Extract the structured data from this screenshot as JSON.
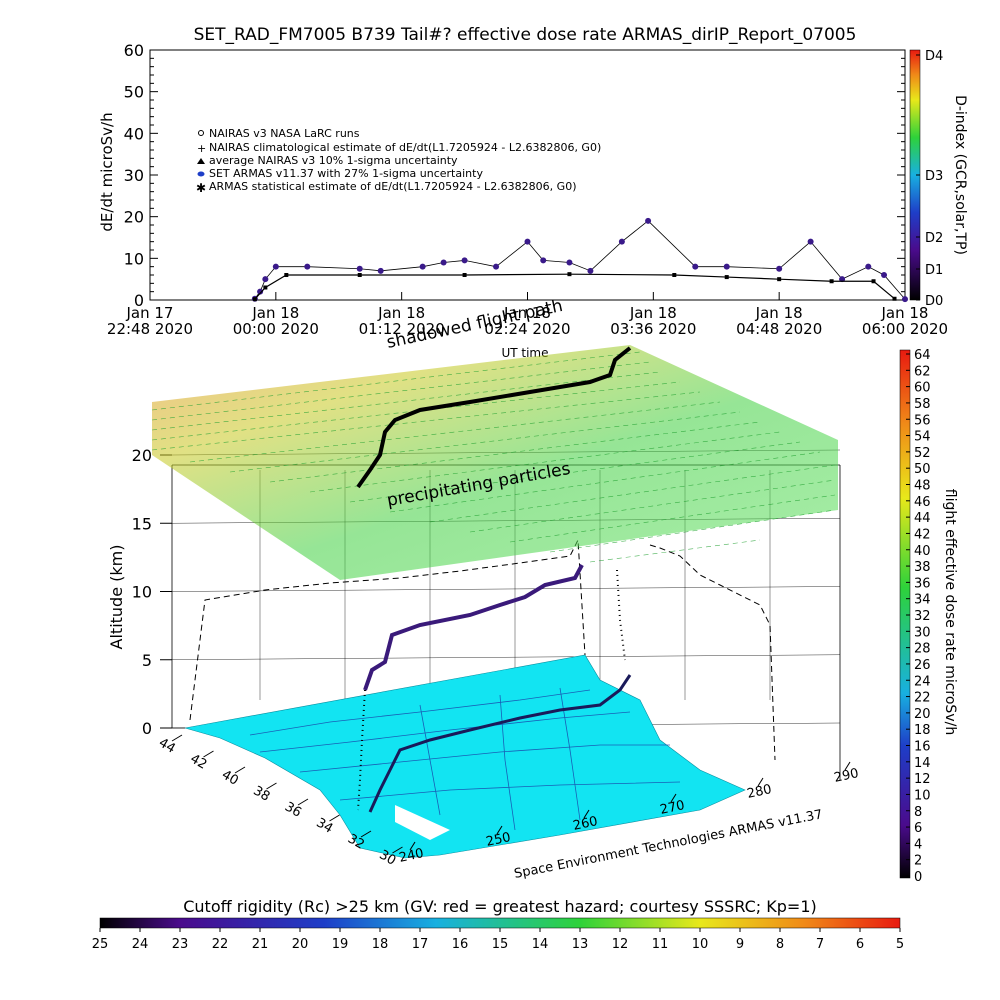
{
  "chart_data": [
    {
      "type": "scatter",
      "title": "SET_RAD_FM7005  B739 Tail#? effective dose rate ARMAS_dirIP_Report_07005",
      "ylabel": "dE/dt microSv/h",
      "xlabel": "",
      "ylim": [
        0,
        60
      ],
      "y_ticks": [
        "0",
        "10",
        "20",
        "30",
        "40",
        "50",
        "60"
      ],
      "x_ticks": [
        {
          "l1": "Jan 17",
          "l2": "22:48 2020"
        },
        {
          "l1": "Jan 18",
          "l2": "00:00 2020"
        },
        {
          "l1": "Jan 18",
          "l2": "01:12 2020"
        },
        {
          "l1": "Jan 18",
          "l2": "02:24 2020"
        },
        {
          "l1": "Jan 18",
          "l2": "03:36 2020"
        },
        {
          "l1": "Jan 18",
          "l2": "04:48 2020"
        },
        {
          "l1": "Jan 18",
          "l2": "06:00 2020"
        }
      ],
      "x_range_hours": [
        0,
        7.2
      ],
      "legend": [
        "NAIRAS v3 NASA LaRC runs",
        "NAIRAS climatological estimate of dE/dt(L1.7205924 - L2.6382806, G0)",
        "average NAIRAS v3 10% 1-sigma uncertainty",
        "SET ARMAS v11.37 with 27% 1-sigma uncertainty",
        "ARMAS statistical estimate of dE/dt(L1.7205924 - L2.6382806, G0)"
      ],
      "legend_position": "upper-left",
      "right_axis_label": "D-index (GCR,solar,TP)",
      "right_axis_ticks": [
        "D0",
        "D1",
        "D2",
        "D3",
        "D4"
      ],
      "extra_labels": [
        "UT time",
        "shadowed flight path"
      ],
      "series": [
        {
          "name": "SET ARMAS v11.37 with 27% 1-sigma uncertainty",
          "color": "#3a1a8a",
          "x": [
            1.0,
            1.05,
            1.1,
            1.2,
            1.5,
            2.0,
            2.2,
            2.6,
            2.8,
            3.0,
            3.3,
            3.6,
            3.75,
            4.0,
            4.2,
            4.5,
            4.75,
            5.2,
            5.5,
            6.0,
            6.3,
            6.6,
            6.85,
            7.0,
            7.2
          ],
          "y": [
            0.3,
            2,
            5,
            8,
            8,
            7.5,
            7,
            8,
            9,
            9.5,
            8,
            14,
            9.5,
            9,
            7,
            14,
            19,
            8,
            8,
            7.5,
            14,
            5,
            8,
            6,
            0.2
          ]
        },
        {
          "name": "ARMAS statistical estimate of dE/dt(L1.7205924 - L2.6382806, G0)",
          "color": "#000000",
          "x": [
            1.0,
            1.1,
            1.3,
            2.0,
            3.0,
            4.0,
            5.0,
            5.5,
            6.0,
            6.5,
            6.9,
            7.1
          ],
          "y": [
            0.2,
            3,
            6,
            6,
            6,
            6.2,
            6,
            5.5,
            5,
            4.5,
            4.5,
            0.3
          ]
        }
      ]
    },
    {
      "type": "surface-3d",
      "zlabel": "Altitude (km)",
      "zlim": [
        0,
        20
      ],
      "z_ticks": [
        "0",
        "5",
        "10",
        "15",
        "20"
      ],
      "lat_ticks": [
        "44",
        "42",
        "40",
        "38",
        "36",
        "34",
        "32",
        "30"
      ],
      "lon_ticks": [
        "240",
        "250",
        "260",
        "270",
        "280",
        "290"
      ],
      "annotation": "precipitating particles",
      "credit": "Space Environment Technologies ARMAS v11.37",
      "colorbar_label": "flight effective dose rate microSv/h",
      "colorbar_ticks": [
        "0",
        "2",
        "4",
        "6",
        "8",
        "10",
        "12",
        "14",
        "16",
        "18",
        "20",
        "22",
        "24",
        "26",
        "28",
        "30",
        "32",
        "34",
        "36",
        "38",
        "40",
        "42",
        "44",
        "46",
        "48",
        "50",
        "52",
        "54",
        "56",
        "58",
        "60",
        "62",
        "64"
      ]
    }
  ],
  "bottom_colorbar": {
    "label": "Cutoff rigidity (Rc) >25 km (GV: red = greatest hazard; courtesy SSSRC; Kp=1)",
    "ticks": [
      "25",
      "24",
      "23",
      "22",
      "21",
      "20",
      "19",
      "18",
      "17",
      "16",
      "15",
      "14",
      "13",
      "12",
      "11",
      "10",
      "9",
      "8",
      "7",
      "6",
      "5"
    ]
  }
}
